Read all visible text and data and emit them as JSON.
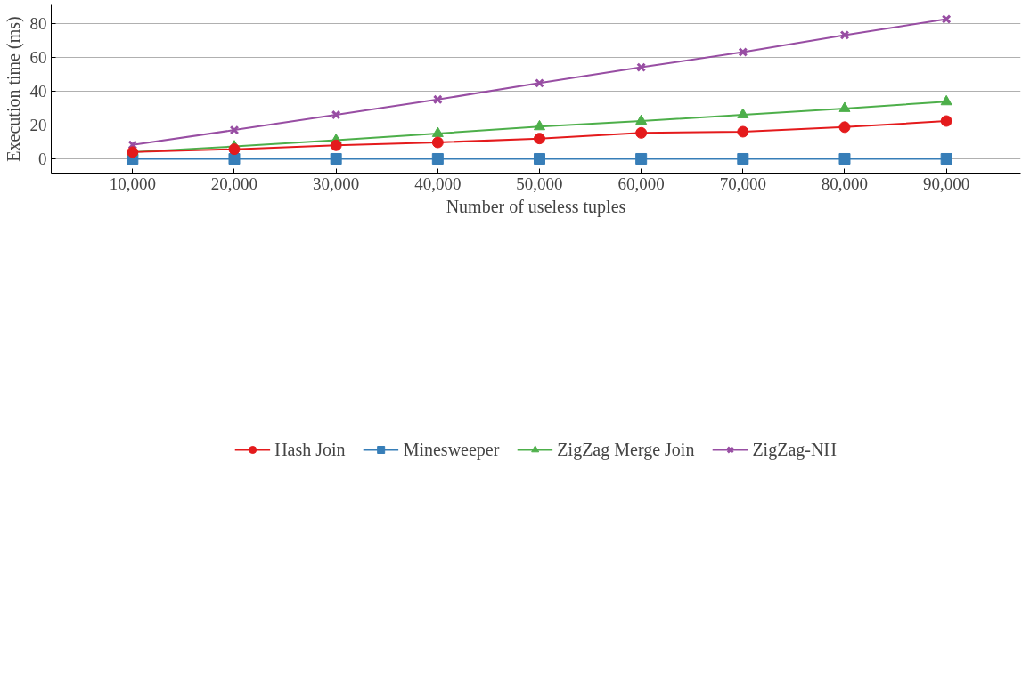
{
  "chart_data": {
    "type": "line",
    "xlabel": "Number of useless tuples",
    "ylabel": "Execution time (ms)",
    "x": [
      10000,
      20000,
      30000,
      40000,
      50000,
      60000,
      70000,
      80000,
      90000
    ],
    "series": [
      {
        "name": "Hash Join",
        "color": "#e41a1c",
        "marker": "circle",
        "values": [
          4,
          5.7,
          8,
          9.7,
          12,
          15.3,
          16,
          18.7,
          22.3
        ]
      },
      {
        "name": "Minesweeper",
        "color": "#377eb8",
        "marker": "square",
        "values": [
          0,
          0,
          0,
          0,
          0,
          0,
          0,
          0,
          0
        ]
      },
      {
        "name": "ZigZag Merge Join",
        "color": "#4daf4a",
        "marker": "triangle",
        "values": [
          4,
          7.3,
          11,
          15,
          19,
          22.3,
          26,
          29.7,
          33.7
        ]
      },
      {
        "name": "ZigZag-NH",
        "color": "#984ea3",
        "marker": "cross",
        "values": [
          8.3,
          17,
          26,
          35,
          44.7,
          54,
          63,
          73,
          82.4
        ]
      }
    ],
    "xlim": [
      2000,
      97300
    ],
    "ylim": [
      -8.4,
      90.8
    ],
    "xticks": [
      {
        "value": 10000,
        "label": "10,000"
      },
      {
        "value": 20000,
        "label": "20,000"
      },
      {
        "value": 30000,
        "label": "30,000"
      },
      {
        "value": 40000,
        "label": "40,000"
      },
      {
        "value": 50000,
        "label": "50,000"
      },
      {
        "value": 60000,
        "label": "60,000"
      },
      {
        "value": 70000,
        "label": "70,000"
      },
      {
        "value": 80000,
        "label": "80,000"
      },
      {
        "value": 90000,
        "label": "90,000"
      }
    ],
    "yticks": [
      0,
      20,
      40,
      60,
      80
    ],
    "grid": "y",
    "legend": "bottom",
    "line_style": "solid"
  }
}
